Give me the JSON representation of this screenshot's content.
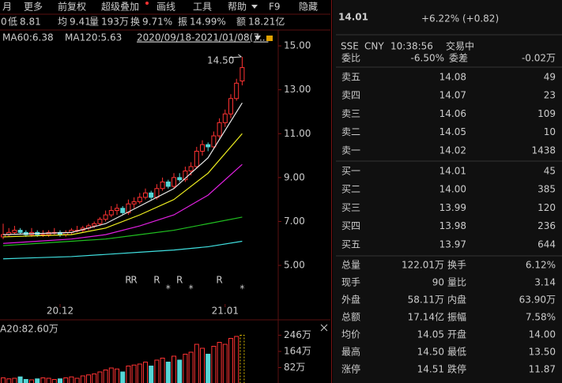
{
  "toolbar": [
    "月",
    "更多",
    "前复权",
    "超级叠加",
    "画线",
    "工具",
    "帮助",
    "F9",
    "隐藏"
  ],
  "quote_bar": {
    "lead": "0",
    "items": [
      [
        "低",
        "8.81"
      ],
      [
        "均",
        "9.41"
      ],
      [
        "量",
        "193万"
      ],
      [
        "换",
        "9.71%"
      ],
      [
        "振",
        "14.99%"
      ],
      [
        "额",
        "18.21亿"
      ]
    ]
  },
  "ma_legend": [
    "MA60:6.38",
    "MA120:5.63"
  ],
  "date_range": "2020/09/18-2021/01/08(7...",
  "chart": {
    "type": "candlestick",
    "up_color": "#ff3232",
    "down_color": "#54d6d6",
    "candles": [
      [
        6.3,
        6.9,
        6.2,
        6.4
      ],
      [
        6.4,
        6.7,
        6.3,
        6.5
      ],
      [
        6.5,
        6.8,
        6.4,
        6.6
      ],
      [
        6.6,
        6.7,
        6.4,
        6.5
      ],
      [
        6.5,
        6.6,
        6.3,
        6.4
      ],
      [
        6.4,
        6.7,
        6.3,
        6.5
      ],
      [
        6.5,
        6.6,
        6.3,
        6.4
      ],
      [
        6.4,
        6.6,
        6.3,
        6.4
      ],
      [
        6.4,
        6.6,
        6.3,
        6.5
      ],
      [
        6.5,
        6.7,
        6.4,
        6.5
      ],
      [
        6.5,
        6.6,
        6.3,
        6.4
      ],
      [
        6.4,
        6.6,
        6.3,
        6.5
      ],
      [
        6.5,
        6.7,
        6.4,
        6.6
      ],
      [
        6.6,
        6.8,
        6.5,
        6.6
      ],
      [
        6.6,
        6.8,
        6.5,
        6.7
      ],
      [
        6.7,
        6.9,
        6.6,
        6.8
      ],
      [
        6.8,
        7.0,
        6.7,
        6.9
      ],
      [
        6.9,
        7.2,
        6.8,
        7.1
      ],
      [
        7.1,
        7.5,
        7.0,
        7.3
      ],
      [
        7.3,
        7.7,
        7.2,
        7.5
      ],
      [
        7.5,
        7.8,
        7.3,
        7.6
      ],
      [
        7.6,
        7.7,
        7.3,
        7.4
      ],
      [
        7.4,
        8.0,
        7.3,
        7.8
      ],
      [
        7.8,
        8.1,
        7.6,
        7.9
      ],
      [
        7.9,
        8.3,
        7.8,
        8.1
      ],
      [
        8.1,
        8.5,
        8.0,
        8.3
      ],
      [
        8.3,
        8.4,
        8.0,
        8.1
      ],
      [
        8.1,
        8.7,
        8.0,
        8.5
      ],
      [
        8.5,
        9.0,
        8.4,
        8.8
      ],
      [
        8.8,
        8.9,
        8.5,
        8.6
      ],
      [
        8.6,
        9.2,
        8.5,
        9.0
      ],
      [
        9.0,
        9.2,
        8.8,
        8.9
      ],
      [
        8.9,
        9.5,
        8.8,
        9.3
      ],
      [
        9.3,
        9.7,
        9.1,
        9.5
      ],
      [
        9.5,
        10.4,
        9.4,
        10.2
      ],
      [
        10.2,
        10.7,
        10.0,
        10.5
      ],
      [
        10.5,
        10.6,
        10.2,
        10.4
      ],
      [
        10.4,
        11.1,
        10.3,
        10.9
      ],
      [
        10.9,
        11.7,
        10.8,
        11.5
      ],
      [
        11.5,
        12.1,
        11.3,
        11.9
      ],
      [
        11.9,
        12.8,
        11.7,
        12.6
      ],
      [
        12.6,
        13.5,
        12.5,
        13.3
      ],
      [
        13.4,
        14.5,
        13.2,
        14.01
      ]
    ],
    "categories": [
      null,
      null,
      null,
      null,
      null,
      null,
      null,
      null,
      null,
      null,
      "20.12",
      null,
      null,
      null,
      null,
      null,
      null,
      null,
      null,
      null,
      null,
      null,
      null,
      null,
      null,
      null,
      null,
      null,
      null,
      null,
      null,
      null,
      null,
      null,
      null,
      null,
      null,
      null,
      null,
      "21.01",
      null,
      null,
      null
    ],
    "signal_r": [
      null,
      null,
      null,
      null,
      null,
      null,
      null,
      null,
      null,
      null,
      null,
      null,
      null,
      null,
      null,
      null,
      null,
      null,
      null,
      null,
      null,
      null,
      "R",
      "R",
      null,
      null,
      null,
      "R",
      null,
      null,
      null,
      "R",
      null,
      null,
      null,
      null,
      null,
      null,
      "R",
      null,
      null,
      null,
      null
    ],
    "signal_star": [
      null,
      null,
      null,
      null,
      null,
      null,
      null,
      null,
      null,
      null,
      null,
      null,
      null,
      null,
      null,
      null,
      null,
      null,
      null,
      null,
      null,
      null,
      null,
      null,
      null,
      null,
      null,
      null,
      null,
      "*",
      null,
      null,
      null,
      "*",
      null,
      null,
      null,
      null,
      null,
      null,
      null,
      null,
      "*"
    ],
    "high_label": "14.50",
    "ylim": [
      2.7,
      15.65
    ],
    "yticks": [
      {
        "value": 15,
        "label": "15.00"
      },
      {
        "value": 13,
        "label": "13.00"
      },
      {
        "value": 11,
        "label": "11.00"
      },
      {
        "value": 9,
        "label": "9.00"
      },
      {
        "value": 7,
        "label": "7.00"
      },
      {
        "value": 5,
        "label": "5.00"
      }
    ],
    "ma_x": [
      0,
      6,
      12,
      18,
      24,
      30,
      36,
      42
    ],
    "ma_lines": [
      {
        "color": "#e8e8e8",
        "values": [
          6.4,
          6.45,
          6.5,
          6.9,
          7.7,
          8.5,
          9.9,
          12.4
        ]
      },
      {
        "color": "#f0f020",
        "values": [
          6.3,
          6.35,
          6.4,
          6.7,
          7.3,
          8.0,
          9.2,
          11.0
        ]
      },
      {
        "color": "#e020e0",
        "values": [
          6.0,
          6.1,
          6.2,
          6.4,
          6.8,
          7.3,
          8.2,
          9.6
        ]
      },
      {
        "color": "#20c020",
        "values": [
          5.9,
          6.0,
          6.1,
          6.2,
          6.4,
          6.6,
          6.9,
          7.2
        ]
      },
      {
        "color": "#40e0e0",
        "values": [
          5.3,
          5.35,
          5.4,
          5.5,
          5.6,
          5.7,
          5.85,
          6.1
        ]
      }
    ],
    "volume_label": "A20:82.60万",
    "volumes": [
      30,
      25,
      28,
      35,
      22,
      20,
      25,
      30,
      28,
      22,
      25,
      30,
      35,
      28,
      40,
      45,
      50,
      60,
      70,
      80,
      75,
      60,
      90,
      95,
      100,
      110,
      90,
      120,
      130,
      110,
      140,
      120,
      150,
      160,
      200,
      180,
      150,
      190,
      210,
      200,
      230,
      240,
      246
    ],
    "vlim": [
      0,
      312
    ],
    "vticks": [
      {
        "value": 246,
        "label": "246万"
      },
      {
        "value": 164,
        "label": "164万"
      },
      {
        "value": 82,
        "label": "82万"
      }
    ]
  },
  "quote": {
    "price": "14.01",
    "change": "+6.22% (+0.82)",
    "meta": [
      "SSE",
      "CNY",
      "10:38:56",
      "交易中"
    ]
  },
  "order_ratio": [
    [
      "委比",
      "-6.50%"
    ],
    [
      "委差",
      "-0.02万"
    ]
  ],
  "asks": [
    [
      "卖五",
      "14.08",
      "49"
    ],
    [
      "卖四",
      "14.07",
      "23"
    ],
    [
      "卖三",
      "14.06",
      "109"
    ],
    [
      "卖二",
      "14.05",
      "10"
    ],
    [
      "卖一",
      "14.02",
      "1438"
    ]
  ],
  "bids": [
    [
      "买一",
      "14.01",
      "45"
    ],
    [
      "买二",
      "14.00",
      "385"
    ],
    [
      "买三",
      "13.99",
      "120"
    ],
    [
      "买四",
      "13.98",
      "236"
    ],
    [
      "买五",
      "13.97",
      "644"
    ]
  ],
  "stats": [
    [
      "总量",
      "122.01万",
      "换手",
      "6.12%"
    ],
    [
      "现手",
      "90",
      "量比",
      "3.14"
    ],
    [
      "外盘",
      "58.11万",
      "内盘",
      "63.90万"
    ],
    [
      "总额",
      "17.14亿",
      "振幅",
      "7.58%"
    ],
    [
      "均价",
      "14.05",
      "开盘",
      "14.00"
    ],
    [
      "最高",
      "14.50",
      "最低",
      "13.50"
    ],
    [
      "涨停",
      "14.51",
      "跌停",
      "11.87"
    ]
  ]
}
